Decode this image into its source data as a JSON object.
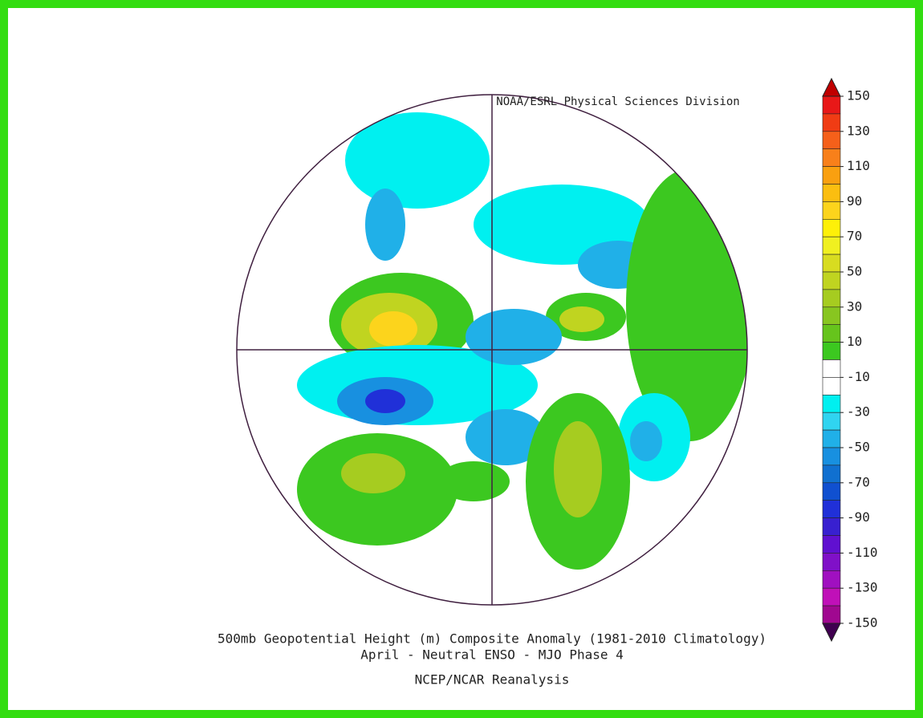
{
  "header": {
    "credit": "NOAA/ESRL Physical Sciences Division"
  },
  "colorbar": {
    "ticks": [
      150,
      130,
      110,
      90,
      70,
      50,
      30,
      10,
      -10,
      -30,
      -50,
      -70,
      -90,
      -110,
      -130,
      -150
    ],
    "colors": [
      "#e81818",
      "#f03c14",
      "#f5601a",
      "#f8801a",
      "#f9a010",
      "#fbbe10",
      "#fcd41c",
      "#fef008",
      "#f0f020",
      "#d8dc20",
      "#c0d420",
      "#a6cc20",
      "#88c620",
      "#66c41c",
      "#3cc820",
      "#ffffff",
      "#ffffff",
      "#00f0f0",
      "#30d4f0",
      "#20b0e8",
      "#1890e0",
      "#1070d0",
      "#1050d0",
      "#2030d8",
      "#3820d0",
      "#6010d0",
      "#8010c8",
      "#a010c0",
      "#c010b8",
      "#a00890"
    ],
    "top_color": "#c00000",
    "bottom_color": "#400050"
  },
  "footer": {
    "title": "500mb Geopotential Height (m) Composite Anomaly (1981-2010 Climatology)",
    "subtitle": "April - Neutral ENSO - MJO Phase 4",
    "source": "NCEP/NCAR Reanalysis"
  }
}
